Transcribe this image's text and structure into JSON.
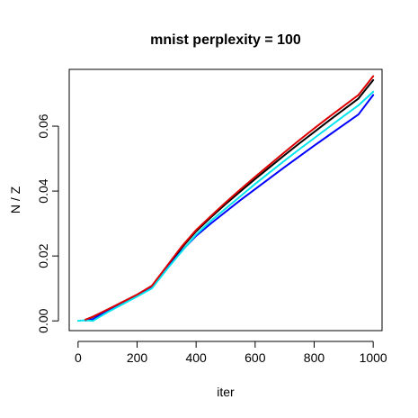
{
  "chart_data": {
    "type": "line",
    "title": "mnist perplexity = 100",
    "xlabel": "iter",
    "ylabel": "N / Z",
    "xlim": [
      -30,
      1030
    ],
    "ylim": [
      -0.003,
      0.0775
    ],
    "xticks": [
      0,
      200,
      400,
      600,
      800,
      1000
    ],
    "yticks": [
      0.0,
      0.02,
      0.04,
      0.06
    ],
    "xtick_labels": [
      "0",
      "200",
      "400",
      "600",
      "800",
      "1000"
    ],
    "ytick_labels": [
      "0.00",
      "0.02",
      "0.04",
      "0.06"
    ],
    "grid": false,
    "legend": false,
    "series": [
      {
        "color": "#000000",
        "x": [
          25,
          50,
          100,
          150,
          200,
          250,
          300,
          350,
          400,
          450,
          500,
          550,
          600,
          650,
          700,
          750,
          800,
          850,
          900,
          950,
          1000
        ],
        "y": [
          0.0003,
          0.0012,
          0.0034,
          0.0057,
          0.008,
          0.0106,
          0.0165,
          0.0224,
          0.0276,
          0.0319,
          0.036,
          0.0399,
          0.0437,
          0.0474,
          0.0511,
          0.0547,
          0.0582,
          0.0617,
          0.0651,
          0.0685,
          0.0742
        ]
      },
      {
        "color": "#0000ff",
        "x": [
          25,
          50,
          100,
          150,
          200,
          250,
          300,
          350,
          400,
          450,
          500,
          550,
          600,
          650,
          700,
          750,
          800,
          850,
          900,
          950,
          1000
        ],
        "y": [
          0.0001,
          0.0005,
          0.003,
          0.0054,
          0.0078,
          0.0104,
          0.016,
          0.0215,
          0.0262,
          0.03,
          0.0336,
          0.0372,
          0.0406,
          0.044,
          0.0474,
          0.0507,
          0.054,
          0.0572,
          0.0604,
          0.0636,
          0.0696
        ]
      },
      {
        "color": "#00e5ee",
        "x": [
          0,
          25,
          50,
          100,
          150,
          200,
          250,
          300,
          350,
          400,
          450,
          500,
          550,
          600,
          650,
          700,
          750,
          800,
          850,
          900,
          950,
          1000
        ],
        "y": [
          0.0,
          0.0002,
          0.0,
          0.0027,
          0.0051,
          0.0075,
          0.01,
          0.0158,
          0.0213,
          0.0266,
          0.0308,
          0.0346,
          0.0384,
          0.0422,
          0.0458,
          0.0494,
          0.0529,
          0.0563,
          0.0597,
          0.0631,
          0.0664,
          0.0706
        ]
      },
      {
        "color": "#dd0000",
        "x": [
          25,
          50,
          100,
          150,
          200,
          250,
          300,
          350,
          400,
          450,
          500,
          550,
          600,
          650,
          700,
          750,
          800,
          850,
          900,
          950,
          1000
        ],
        "y": [
          0.0004,
          0.0013,
          0.0035,
          0.0058,
          0.0081,
          0.0108,
          0.0168,
          0.0228,
          0.028,
          0.0323,
          0.0365,
          0.0405,
          0.0444,
          0.0482,
          0.052,
          0.0557,
          0.0593,
          0.0628,
          0.0662,
          0.0696,
          0.0754
        ]
      }
    ]
  }
}
